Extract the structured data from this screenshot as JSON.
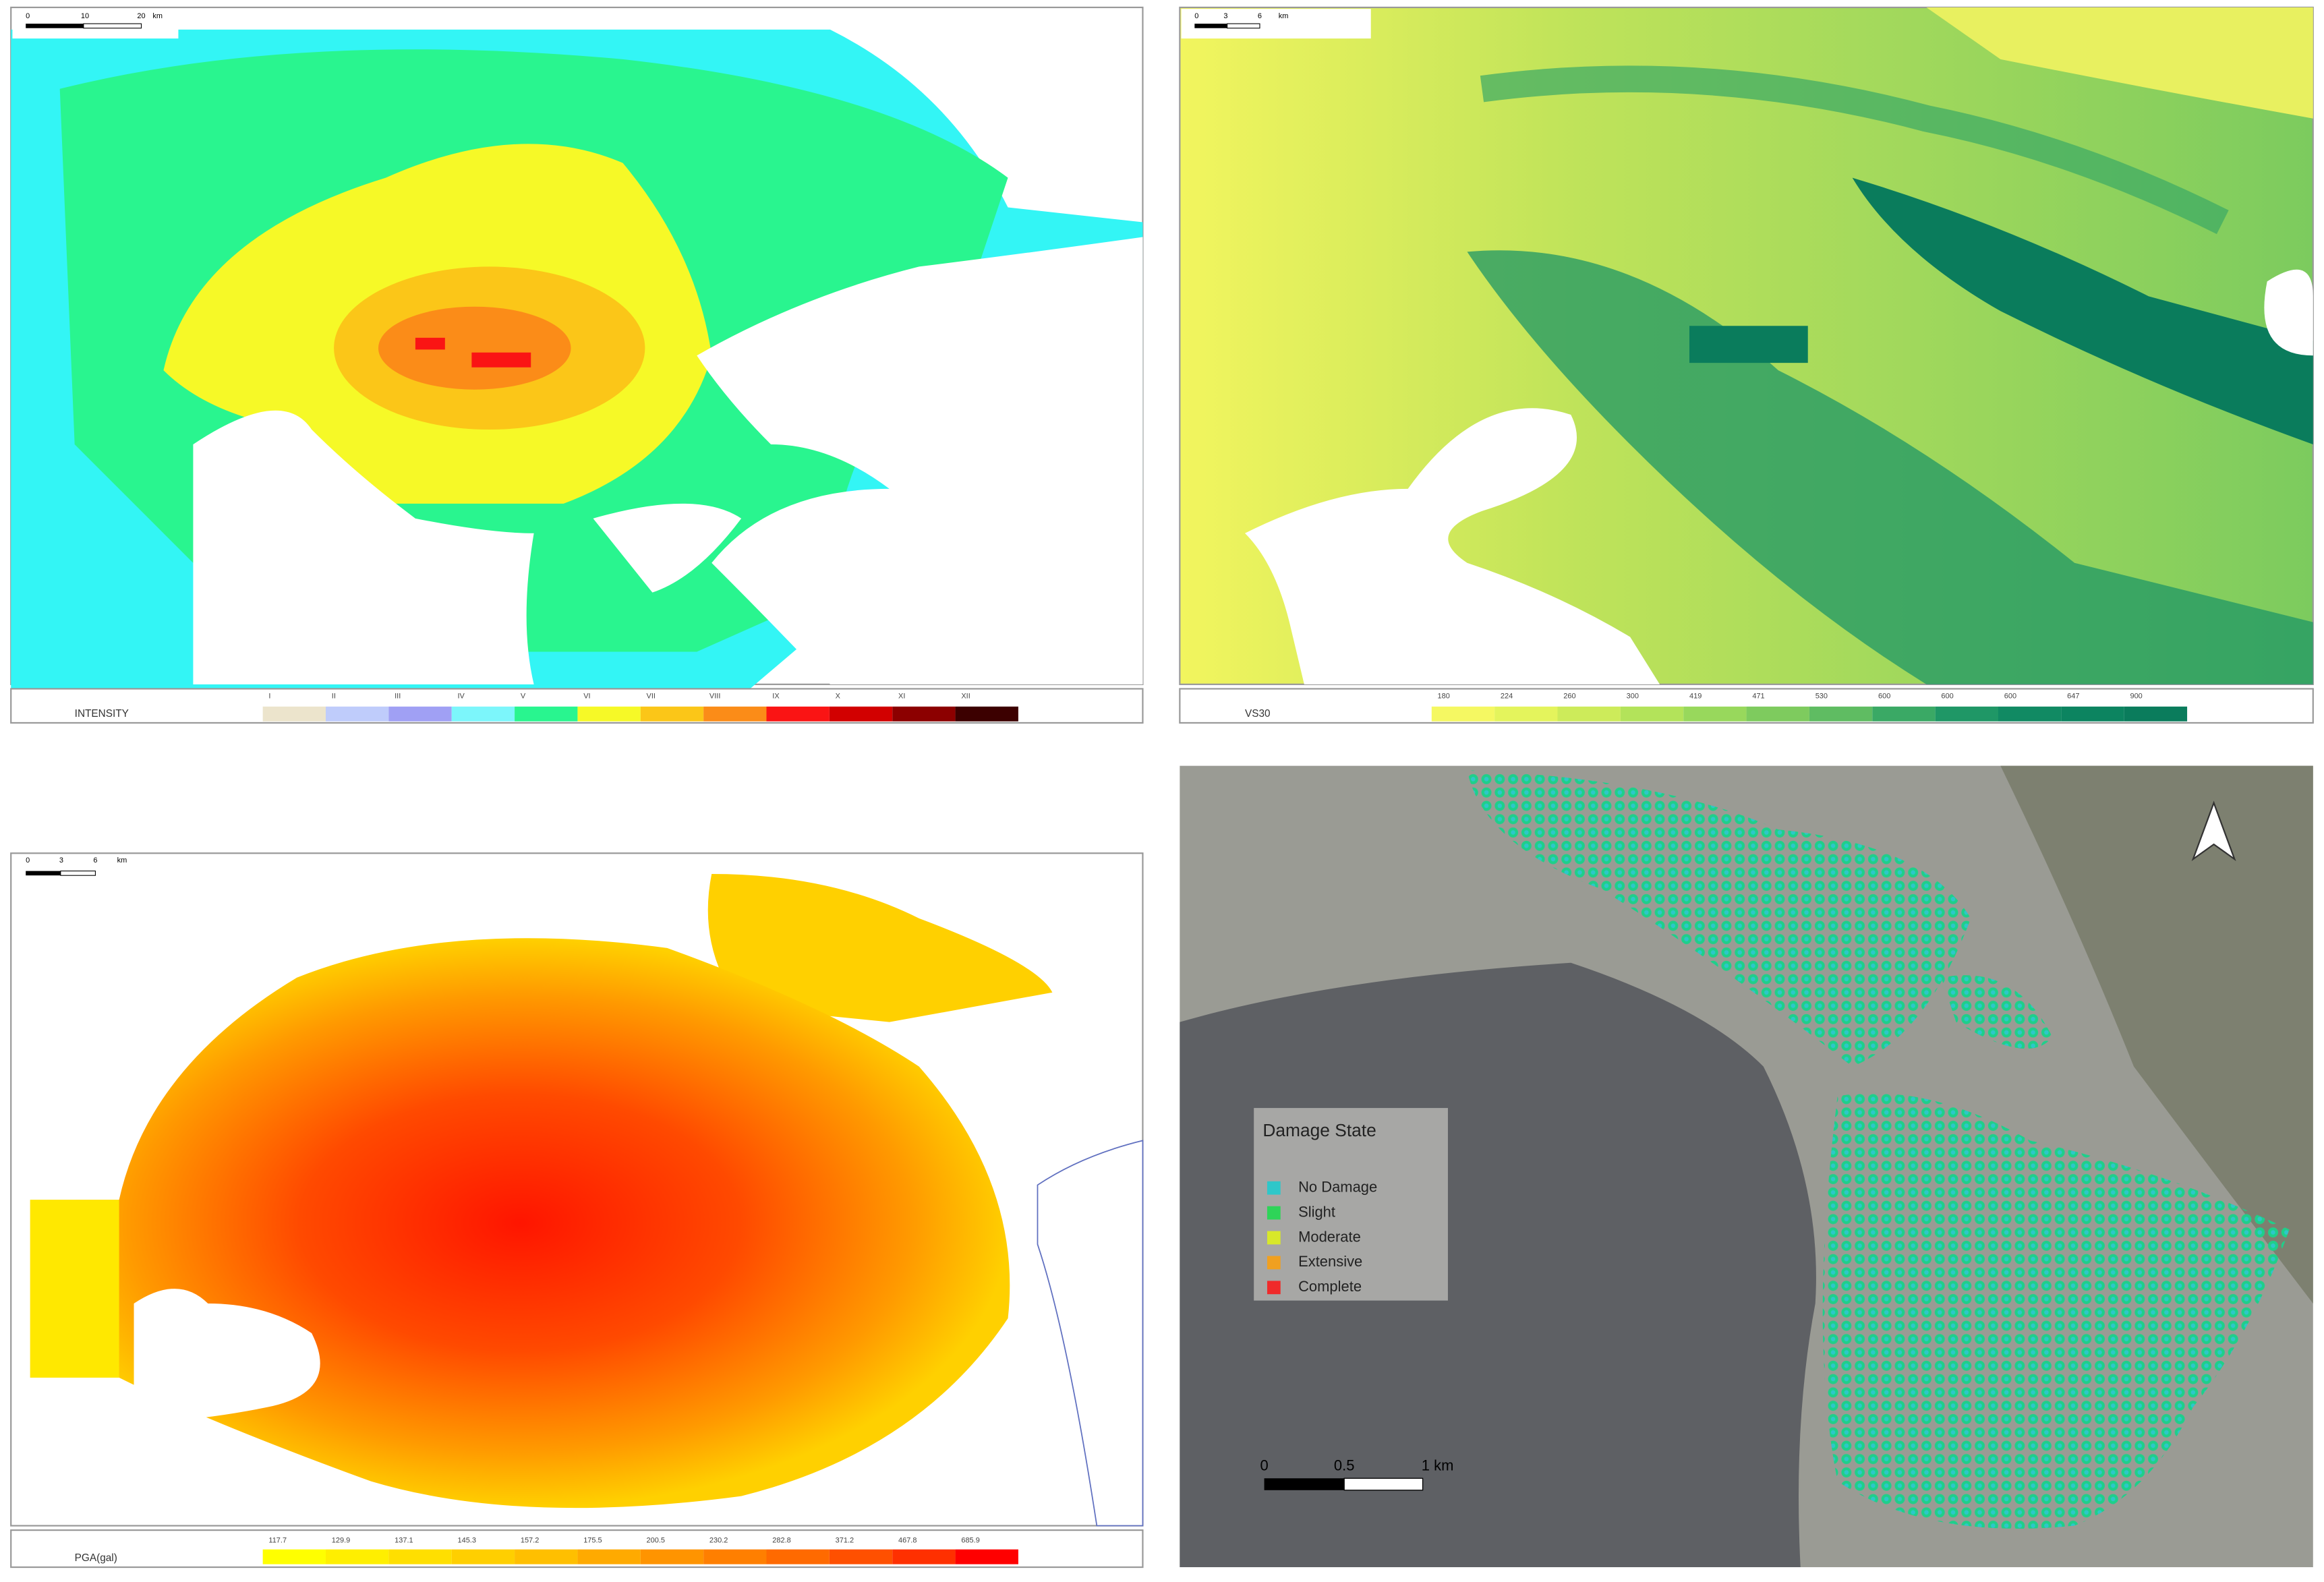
{
  "panels": [
    {
      "scale_bar": [
        "0",
        "10",
        "20",
        "km"
      ],
      "legend_title": "INTENSITY",
      "legend": [
        {
          "label": "I",
          "color": "#ece4cc"
        },
        {
          "label": "II",
          "color": "#bfccfb"
        },
        {
          "label": "III",
          "color": "#a0a0f4"
        },
        {
          "label": "IV",
          "color": "#7cf6fb"
        },
        {
          "label": "V",
          "color": "#29f58f"
        },
        {
          "label": "VI",
          "color": "#f6f927"
        },
        {
          "label": "VII",
          "color": "#fbc618"
        },
        {
          "label": "VIII",
          "color": "#fb8c18"
        },
        {
          "label": "IX",
          "color": "#fa1414"
        },
        {
          "label": "X",
          "color": "#d20000"
        },
        {
          "label": "XI",
          "color": "#8c0000"
        },
        {
          "label": "XII",
          "color": "#3c0000"
        }
      ]
    },
    {
      "scale_bar": [
        "0",
        "3",
        "6",
        "km"
      ],
      "legend_title": "VS30",
      "legend": [
        {
          "label": "180",
          "color": "#f5f862"
        },
        {
          "label": "224",
          "color": "#e4f45c"
        },
        {
          "label": "260",
          "color": "#cdeb5a"
        },
        {
          "label": "300",
          "color": "#b3e35a"
        },
        {
          "label": "419",
          "color": "#98d85c"
        },
        {
          "label": "471",
          "color": "#7ecb5e"
        },
        {
          "label": "530",
          "color": "#5fbc62"
        },
        {
          "label": "600",
          "color": "#3aa965"
        },
        {
          "label": "600",
          "color": "#1f9766"
        },
        {
          "label": "600",
          "color": "#118a63"
        },
        {
          "label": "647",
          "color": "#0c8460"
        },
        {
          "label": "900",
          "color": "#0a7c5c"
        }
      ]
    },
    {
      "scale_bar": [
        "0",
        "3",
        "6",
        "km"
      ],
      "legend_title": "PGA(gal)",
      "legend": [
        {
          "label": "117.7",
          "color": "#ffff00"
        },
        {
          "label": "129.9",
          "color": "#ffef00"
        },
        {
          "label": "137.1",
          "color": "#ffdf00"
        },
        {
          "label": "145.3",
          "color": "#ffcf00"
        },
        {
          "label": "157.2",
          "color": "#ffbf00"
        },
        {
          "label": "175.5",
          "color": "#ffaa00"
        },
        {
          "label": "200.5",
          "color": "#ff9400"
        },
        {
          "label": "230.2",
          "color": "#ff7f00"
        },
        {
          "label": "282.8",
          "color": "#ff6a00"
        },
        {
          "label": "371.2",
          "color": "#ff5000"
        },
        {
          "label": "467.8",
          "color": "#ff3000"
        },
        {
          "label": "685.9",
          "color": "#ff0000"
        }
      ]
    },
    {
      "scale_bar": [
        "0",
        "0.5",
        "1 km"
      ],
      "legend_title": "Damage State",
      "legend": [
        {
          "label": "No Damage",
          "color": "#2ec7c9"
        },
        {
          "label": "Slight",
          "color": "#2ed458"
        },
        {
          "label": "Moderate",
          "color": "#d8e82a"
        },
        {
          "label": "Extensive",
          "color": "#f0a020"
        },
        {
          "label": "Complete",
          "color": "#f02a2a"
        }
      ]
    }
  ]
}
